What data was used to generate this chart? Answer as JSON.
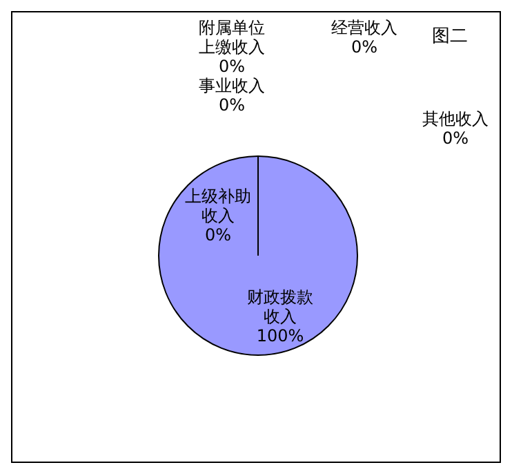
{
  "chart_data": {
    "type": "pie",
    "title": "图二",
    "categories": [
      "财政拨款收入",
      "上级补助收入",
      "事业收入",
      "附属单位上缴收入",
      "经营收入",
      "其他收入"
    ],
    "values": [
      100,
      0,
      0,
      0,
      0,
      0
    ],
    "colors": [
      "#9999ff",
      "#9999ff",
      "#9999ff",
      "#9999ff",
      "#9999ff",
      "#9999ff"
    ],
    "value_labels": [
      "100%",
      "0%",
      "0%",
      "0%",
      "0%",
      "0%"
    ]
  }
}
